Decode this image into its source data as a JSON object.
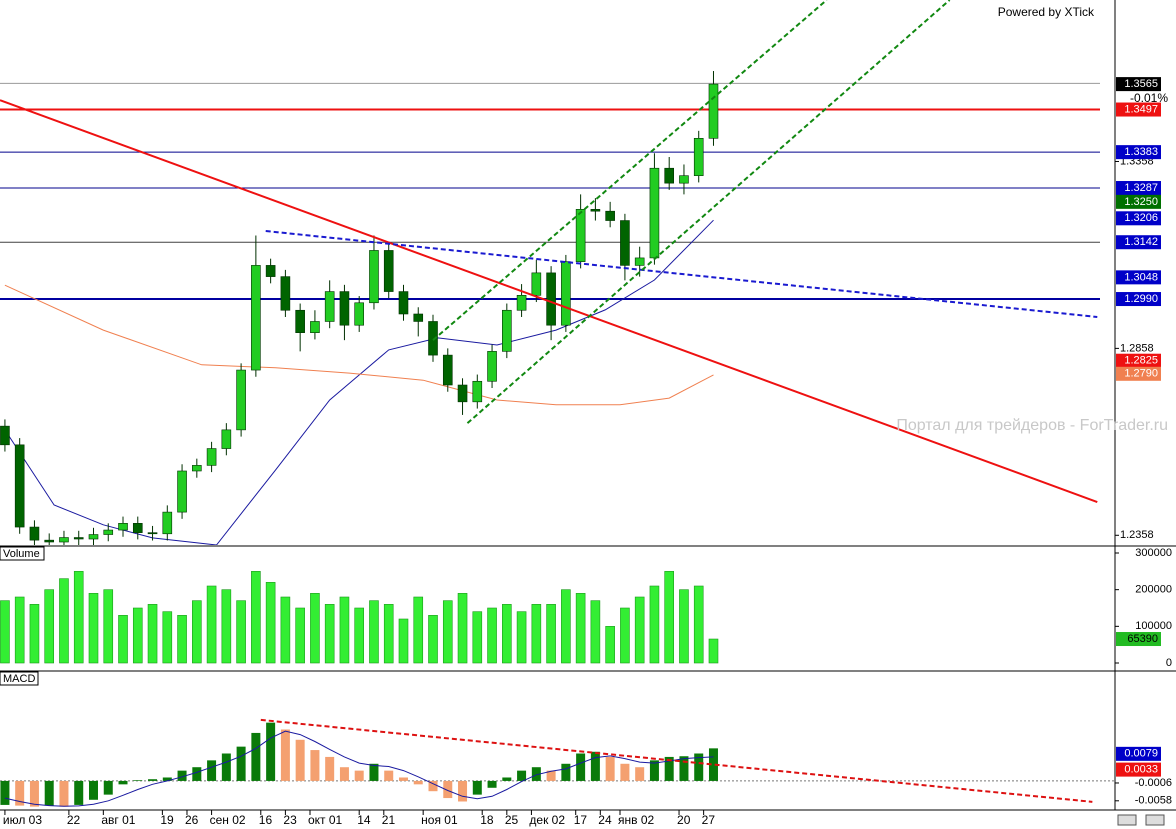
{
  "header": {
    "brand": "Powered by XTick",
    "watermark": "Портал для трейдеров - ForTrader.ru"
  },
  "chart_data": [
    {
      "type": "candlestick",
      "xlim": [
        -1,
        225.6
      ],
      "ylim": [
        1.2332,
        1.379
      ],
      "yticks": [
        1.2358,
        1.2858,
        1.3358
      ],
      "x": [
        0,
        3,
        6,
        9,
        12,
        15,
        18,
        21,
        24,
        27,
        30,
        33,
        36,
        39,
        42,
        45,
        48,
        51,
        54,
        57,
        60,
        63,
        66,
        69,
        72,
        75,
        78,
        81,
        84,
        87,
        90,
        93,
        96,
        99,
        102,
        105,
        108,
        111,
        114,
        117,
        120,
        123,
        126,
        129,
        132,
        135,
        138,
        141,
        144
      ],
      "open": [
        1.265,
        1.26,
        1.238,
        1.2345,
        1.234,
        1.2352,
        1.2348,
        1.236,
        1.2372,
        1.239,
        1.2365,
        1.2362,
        1.242,
        1.253,
        1.2545,
        1.259,
        1.264,
        1.28,
        1.308,
        1.305,
        1.296,
        1.29,
        1.293,
        1.301,
        1.292,
        1.298,
        1.312,
        1.301,
        1.295,
        1.293,
        1.284,
        1.276,
        1.2715,
        1.277,
        1.285,
        1.296,
        1.3,
        1.306,
        1.292,
        1.309,
        1.323,
        1.3225,
        1.32,
        1.308,
        1.31,
        1.334,
        1.33,
        1.332,
        1.342
      ],
      "high": [
        1.2668,
        1.2618,
        1.2398,
        1.2363,
        1.237,
        1.237,
        1.2378,
        1.239,
        1.2408,
        1.2408,
        1.2383,
        1.2438,
        1.2548,
        1.2563,
        1.2608,
        1.2658,
        1.2818,
        1.316,
        1.3098,
        1.3068,
        1.2978,
        1.296,
        1.304,
        1.3028,
        1.2998,
        1.316,
        1.3138,
        1.3028,
        1.2968,
        1.2948,
        1.2858,
        1.2778,
        1.2788,
        1.2868,
        1.2978,
        1.303,
        1.3095,
        1.3078,
        1.3108,
        1.327,
        1.326,
        1.325,
        1.3218,
        1.313,
        1.338,
        1.337,
        1.335,
        1.344,
        1.36
      ],
      "low": [
        1.2582,
        1.2362,
        1.2327,
        1.2322,
        1.2322,
        1.233,
        1.233,
        1.2342,
        1.2354,
        1.2347,
        1.2344,
        1.2344,
        1.2402,
        1.2512,
        1.2527,
        1.2572,
        1.2622,
        1.2782,
        1.3032,
        1.2942,
        1.285,
        1.2882,
        1.2912,
        1.288,
        1.2902,
        1.2962,
        1.2992,
        1.2932,
        1.289,
        1.2822,
        1.2742,
        1.268,
        1.2697,
        1.2752,
        1.2832,
        1.2942,
        1.2982,
        1.288,
        1.2902,
        1.3072,
        1.32,
        1.3182,
        1.304,
        1.305,
        1.3082,
        1.3282,
        1.327,
        1.3302,
        1.34
      ],
      "close": [
        1.26,
        1.238,
        1.2345,
        1.234,
        1.2352,
        1.2348,
        1.236,
        1.2372,
        1.239,
        1.2365,
        1.2362,
        1.242,
        1.253,
        1.2545,
        1.259,
        1.264,
        1.28,
        1.308,
        1.305,
        1.296,
        1.29,
        1.293,
        1.301,
        1.292,
        1.298,
        1.312,
        1.301,
        1.295,
        1.293,
        1.284,
        1.276,
        1.2715,
        1.277,
        1.285,
        1.296,
        1.3,
        1.306,
        1.292,
        1.309,
        1.323,
        1.3225,
        1.32,
        1.308,
        1.31,
        1.334,
        1.33,
        1.332,
        1.342,
        1.3565
      ],
      "colors": {
        "up": "#22cc22",
        "down": "#006400",
        "outline": "#003000"
      },
      "series": [
        {
          "color": "#1a1aa0",
          "x": [
            0,
            10,
            20,
            30,
            43,
            55,
            66,
            78,
            88,
            100,
            112,
            122,
            132,
            144
          ],
          "values": [
            1.264,
            1.2439,
            1.2386,
            1.2351,
            1.2332,
            1.2533,
            1.272,
            1.2854,
            1.2886,
            1.2867,
            1.2907,
            1.2961,
            1.3041,
            1.3201
          ]
        },
        {
          "color": "#f08050",
          "x": [
            0,
            20,
            40,
            55,
            70,
            85,
            100,
            112,
            125,
            135,
            144
          ],
          "values": [
            1.3027,
            1.2907,
            1.2814,
            1.2806,
            1.2792,
            1.2773,
            1.272,
            1.2707,
            1.2707,
            1.2725,
            1.2787
          ]
        }
      ],
      "hlines": [
        {
          "value": 1.3567,
          "color": "#9a9a9a",
          "width": 1
        },
        {
          "value": 1.3497,
          "color": "#ee1111",
          "width": 2
        },
        {
          "value": 1.3383,
          "color": "#00008c",
          "width": 1
        },
        {
          "value": 1.3287,
          "color": "#00008c",
          "width": 1
        },
        {
          "value": 1.3142,
          "color": "#404040",
          "width": 1
        },
        {
          "value": 1.299,
          "color": "#0000a0",
          "width": 2
        }
      ],
      "trendlines": [
        {
          "x": [
            -1,
            222
          ],
          "y": [
            1.3522,
            1.2447
          ],
          "color": "#ee1111",
          "width": 2,
          "dashed": false
        },
        {
          "x": [
            53,
            222
          ],
          "y": [
            1.3172,
            1.2942
          ],
          "color": "#1a1ad0",
          "width": 2,
          "dashed": true
        },
        {
          "x": [
            87,
            167
          ],
          "y": [
            1.288,
            1.379
          ],
          "color": "#118811",
          "width": 2,
          "dashed": true
        },
        {
          "x": [
            94,
            192
          ],
          "y": [
            1.2658,
            1.379
          ],
          "color": "#118811",
          "width": 2,
          "dashed": true
        }
      ],
      "price_labels": [
        {
          "value": 1.3565,
          "label": "1.3565",
          "color": "#000000"
        },
        {
          "value": 1.3497,
          "label": "1.3497",
          "color": "#ee1111"
        },
        {
          "value": 1.3383,
          "label": "1.3383",
          "color": "#0000c8"
        },
        {
          "value": 1.3287,
          "label": "1.3287",
          "color": "#0000c8"
        },
        {
          "value": 1.325,
          "label": "1.3250",
          "color": "#007000"
        },
        {
          "value": 1.3206,
          "label": "1.3206",
          "color": "#0000c8"
        },
        {
          "value": 1.3142,
          "label": "1.3142",
          "color": "#0000c8"
        },
        {
          "value": 1.3048,
          "label": "1.3048",
          "color": "#0000c8"
        },
        {
          "value": 1.299,
          "label": "1.2990",
          "color": "#0000c8"
        },
        {
          "value": 1.2825,
          "label": "1.2825",
          "color": "#ee1111"
        },
        {
          "value": 1.279,
          "label": "1.2790",
          "color": "#f08050"
        }
      ],
      "change": "-0.01%"
    },
    {
      "type": "bar",
      "title": "Volume",
      "xlim": [
        -1,
        225.6
      ],
      "ylim": [
        0,
        300000
      ],
      "yticks": [
        0,
        100000,
        200000,
        300000
      ],
      "x": [
        0,
        3,
        6,
        9,
        12,
        15,
        18,
        21,
        24,
        27,
        30,
        33,
        36,
        39,
        42,
        45,
        48,
        51,
        54,
        57,
        60,
        63,
        66,
        69,
        72,
        75,
        78,
        81,
        84,
        87,
        90,
        93,
        96,
        99,
        102,
        105,
        108,
        111,
        114,
        117,
        120,
        123,
        126,
        129,
        132,
        135,
        138,
        141,
        144
      ],
      "values": [
        170000,
        180000,
        160000,
        200000,
        230000,
        250000,
        190000,
        200000,
        130000,
        150000,
        160000,
        140000,
        130000,
        170000,
        210000,
        200000,
        170000,
        250000,
        220000,
        180000,
        150000,
        190000,
        160000,
        180000,
        150000,
        170000,
        160000,
        120000,
        180000,
        130000,
        170000,
        190000,
        140000,
        150000,
        160000,
        140000,
        160000,
        160000,
        200000,
        190000,
        170000,
        100000,
        150000,
        180000,
        210000,
        250000,
        200000,
        210000,
        65390
      ],
      "color": "#33ee33",
      "label_color": "#22bb22"
    },
    {
      "type": "macd",
      "title": "MACD",
      "xlim": [
        -1,
        225.6
      ],
      "ylim": [
        -0.0079,
        0.0309
      ],
      "yticks": [
        -0.0006,
        -0.0058
      ],
      "xticks": [
        {
          "value": 0,
          "label": "июл 03"
        },
        {
          "value": 13,
          "label": "22"
        },
        {
          "value": 20,
          "label": "авг 01"
        },
        {
          "value": 32,
          "label": "19"
        },
        {
          "value": 37,
          "label": "26"
        },
        {
          "value": 42,
          "label": "сен 02"
        },
        {
          "value": 52,
          "label": "16"
        },
        {
          "value": 57,
          "label": "23"
        },
        {
          "value": 62,
          "label": "окт 01"
        },
        {
          "value": 72,
          "label": "14"
        },
        {
          "value": 77,
          "label": "21"
        },
        {
          "value": 85,
          "label": "ноя 01"
        },
        {
          "value": 97,
          "label": "18"
        },
        {
          "value": 102,
          "label": "25"
        },
        {
          "value": 107,
          "label": "дек 02"
        },
        {
          "value": 116,
          "label": "17"
        },
        {
          "value": 121,
          "label": "24"
        },
        {
          "value": 125,
          "label": "янв 02"
        },
        {
          "value": 137,
          "label": "20"
        },
        {
          "value": 142,
          "label": "27"
        }
      ],
      "x": [
        0,
        3,
        6,
        9,
        12,
        15,
        18,
        21,
        24,
        27,
        30,
        33,
        36,
        39,
        42,
        45,
        48,
        51,
        54,
        57,
        60,
        63,
        66,
        69,
        72,
        75,
        78,
        81,
        84,
        87,
        90,
        93,
        96,
        99,
        102,
        105,
        108,
        111,
        114,
        117,
        120,
        123,
        126,
        129,
        132,
        135,
        138,
        141,
        144
      ],
      "values": [
        -0.007,
        -0.0072,
        -0.0075,
        -0.0072,
        -0.0075,
        -0.007,
        -0.0055,
        -0.004,
        -0.001,
        0.0002,
        0.0005,
        0.001,
        0.003,
        0.004,
        0.006,
        0.008,
        0.01,
        0.014,
        0.017,
        0.015,
        0.012,
        0.009,
        0.007,
        0.004,
        0.003,
        0.005,
        0.003,
        0.001,
        -0.001,
        -0.003,
        -0.005,
        -0.006,
        -0.004,
        -0.002,
        0.001,
        0.003,
        0.004,
        0.003,
        0.005,
        0.008,
        0.0085,
        0.007,
        0.005,
        0.004,
        0.006,
        0.007,
        0.0072,
        0.008,
        0.0095
      ],
      "colors": {
        "up": "#0a7a0a",
        "down": "#f4a070"
      },
      "signal": {
        "color": "#1a1aa0",
        "values": [
          -0.005,
          -0.006,
          -0.0068,
          -0.0072,
          -0.0074,
          -0.0073,
          -0.0068,
          -0.0058,
          -0.0042,
          -0.0025,
          -0.001,
          0,
          0.0012,
          0.0025,
          0.004,
          0.0055,
          0.0072,
          0.0095,
          0.0125,
          0.0145,
          0.0135,
          0.0115,
          0.0092,
          0.007,
          0.0052,
          0.0045,
          0.0042,
          0.003,
          0.0012,
          -0.0008,
          -0.0028,
          -0.0045,
          -0.0052,
          -0.0045,
          -0.0025,
          -0.0002,
          0.0018,
          0.0028,
          0.0035,
          0.0052,
          0.0068,
          0.0073,
          0.0065,
          0.0055,
          0.0052,
          0.0058,
          0.0065,
          0.0068,
          0.007
        ]
      },
      "trendlines": [
        {
          "x": [
            52,
            221
          ],
          "y": [
            0.0178,
            -0.0061
          ],
          "color": "#dd1111",
          "width": 2,
          "dashed": true
        }
      ],
      "value_boxes": [
        {
          "value": 0.0079,
          "color": "#0000c8"
        },
        {
          "value": 0.0033,
          "color": "#ee1111"
        }
      ]
    }
  ]
}
